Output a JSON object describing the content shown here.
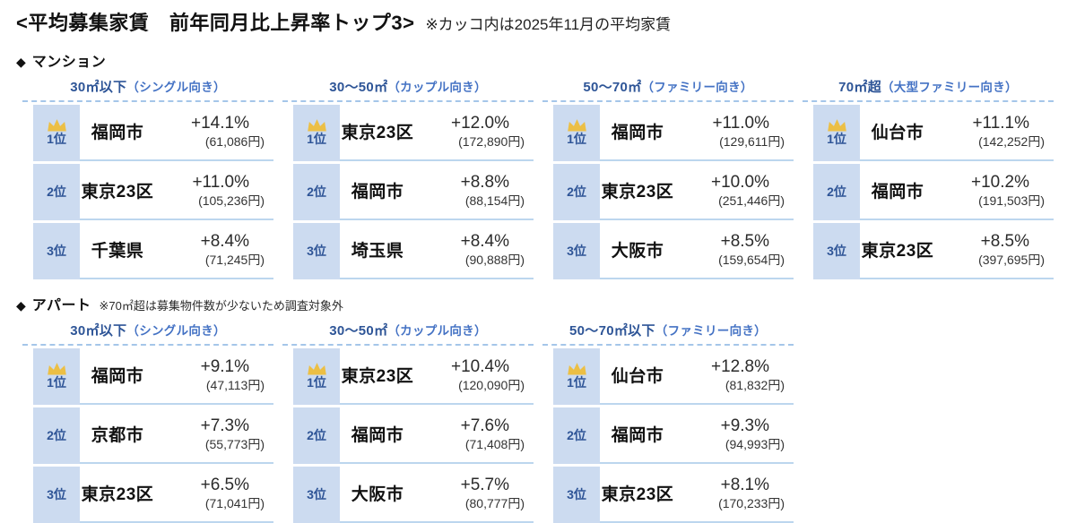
{
  "title": {
    "main": "<平均募集家賃　前年同月比上昇率トップ3>",
    "note": "※カッコ内は2025年11月の平均家賃"
  },
  "colors": {
    "header_blue": "#2e5597",
    "audience_blue": "#4472c4",
    "rank_cell_bg": "#ccdbf0",
    "rank_text": "#2f5597",
    "separator_line": "#bcd6ee",
    "dashed_line": "#a5c6e9",
    "crown_gold": "#ecbf45"
  },
  "icons": {
    "diamond": "◆",
    "crown": "crown-icon (gold, rank 1 only)"
  },
  "sections": [
    {
      "label": "マンション",
      "note": "",
      "columns": [
        {
          "size": "30㎡以下",
          "audience": "（シングル向き）",
          "rows": [
            {
              "rank": "1位",
              "city": "福岡市",
              "rate": "+14.1%",
              "rent": "(61,086円)"
            },
            {
              "rank": "2位",
              "city": "東京23区",
              "rate": "+11.0%",
              "rent": "(105,236円)"
            },
            {
              "rank": "3位",
              "city": "千葉県",
              "rate": "+8.4%",
              "rent": "(71,245円)"
            }
          ]
        },
        {
          "size": "30〜50㎡",
          "audience": "（カップル向き）",
          "rows": [
            {
              "rank": "1位",
              "city": "東京23区",
              "rate": "+12.0%",
              "rent": "(172,890円)"
            },
            {
              "rank": "2位",
              "city": "福岡市",
              "rate": "+8.8%",
              "rent": "(88,154円)"
            },
            {
              "rank": "3位",
              "city": "埼玉県",
              "rate": "+8.4%",
              "rent": "(90,888円)"
            }
          ]
        },
        {
          "size": "50〜70㎡",
          "audience": "（ファミリー向き）",
          "rows": [
            {
              "rank": "1位",
              "city": "福岡市",
              "rate": "+11.0%",
              "rent": "(129,611円)"
            },
            {
              "rank": "2位",
              "city": "東京23区",
              "rate": "+10.0%",
              "rent": "(251,446円)"
            },
            {
              "rank": "3位",
              "city": "大阪市",
              "rate": "+8.5%",
              "rent": "(159,654円)"
            }
          ]
        },
        {
          "size": "70㎡超",
          "audience": "（大型ファミリー向き）",
          "rows": [
            {
              "rank": "1位",
              "city": "仙台市",
              "rate": "+11.1%",
              "rent": "(142,252円)"
            },
            {
              "rank": "2位",
              "city": "福岡市",
              "rate": "+10.2%",
              "rent": "(191,503円)"
            },
            {
              "rank": "3位",
              "city": "東京23区",
              "rate": "+8.5%",
              "rent": "(397,695円)"
            }
          ]
        }
      ]
    },
    {
      "label": "アパート",
      "note": "※70㎡超は募集物件数が少ないため調査対象外",
      "columns": [
        {
          "size": "30㎡以下",
          "audience": "（シングル向き）",
          "rows": [
            {
              "rank": "1位",
              "city": "福岡市",
              "rate": "+9.1%",
              "rent": "(47,113円)"
            },
            {
              "rank": "2位",
              "city": "京都市",
              "rate": "+7.3%",
              "rent": "(55,773円)"
            },
            {
              "rank": "3位",
              "city": "東京23区",
              "rate": "+6.5%",
              "rent": "(71,041円)"
            }
          ]
        },
        {
          "size": "30〜50㎡",
          "audience": "（カップル向き）",
          "rows": [
            {
              "rank": "1位",
              "city": "東京23区",
              "rate": "+10.4%",
              "rent": "(120,090円)"
            },
            {
              "rank": "2位",
              "city": "福岡市",
              "rate": "+7.6%",
              "rent": "(71,408円)"
            },
            {
              "rank": "3位",
              "city": "大阪市",
              "rate": "+5.7%",
              "rent": "(80,777円)"
            }
          ]
        },
        {
          "size": "50〜70㎡以下",
          "audience": "（ファミリー向き）",
          "rows": [
            {
              "rank": "1位",
              "city": "仙台市",
              "rate": "+12.8%",
              "rent": "(81,832円)"
            },
            {
              "rank": "2位",
              "city": "福岡市",
              "rate": "+9.3%",
              "rent": "(94,993円)"
            },
            {
              "rank": "3位",
              "city": "東京23区",
              "rate": "+8.1%",
              "rent": "(170,233円)"
            }
          ]
        }
      ]
    }
  ],
  "chart_data": {
    "type": "table",
    "title": "平均募集家賃 前年同月比上昇率トップ3",
    "note": "カッコ内は2025年11月の平均家賃",
    "row_format": [
      "rank",
      "area",
      "yoy_increase_pct",
      "avg_rent_yen_2025_11"
    ],
    "tables": [
      {
        "group": "マンション",
        "categories": [
          {
            "category": "30㎡以下（シングル向き）",
            "rows": [
              [
                1,
                "福岡市",
                14.1,
                61086
              ],
              [
                2,
                "東京23区",
                11.0,
                105236
              ],
              [
                3,
                "千葉県",
                8.4,
                71245
              ]
            ]
          },
          {
            "category": "30〜50㎡（カップル向き）",
            "rows": [
              [
                1,
                "東京23区",
                12.0,
                172890
              ],
              [
                2,
                "福岡市",
                8.8,
                88154
              ],
              [
                3,
                "埼玉県",
                8.4,
                90888
              ]
            ]
          },
          {
            "category": "50〜70㎡（ファミリー向き）",
            "rows": [
              [
                1,
                "福岡市",
                11.0,
                129611
              ],
              [
                2,
                "東京23区",
                10.0,
                251446
              ],
              [
                3,
                "大阪市",
                8.5,
                159654
              ]
            ]
          },
          {
            "category": "70㎡超（大型ファミリー向き）",
            "rows": [
              [
                1,
                "仙台市",
                11.1,
                142252
              ],
              [
                2,
                "福岡市",
                10.2,
                191503
              ],
              [
                3,
                "東京23区",
                8.5,
                397695
              ]
            ]
          }
        ]
      },
      {
        "group": "アパート",
        "note": "70㎡超は募集物件数が少ないため調査対象外",
        "categories": [
          {
            "category": "30㎡以下（シングル向き）",
            "rows": [
              [
                1,
                "福岡市",
                9.1,
                47113
              ],
              [
                2,
                "京都市",
                7.3,
                55773
              ],
              [
                3,
                "東京23区",
                6.5,
                71041
              ]
            ]
          },
          {
            "category": "30〜50㎡（カップル向き）",
            "rows": [
              [
                1,
                "東京23区",
                10.4,
                120090
              ],
              [
                2,
                "福岡市",
                7.6,
                71408
              ],
              [
                3,
                "大阪市",
                5.7,
                80777
              ]
            ]
          },
          {
            "category": "50〜70㎡以下（ファミリー向き）",
            "rows": [
              [
                1,
                "仙台市",
                12.8,
                81832
              ],
              [
                2,
                "福岡市",
                9.3,
                94993
              ],
              [
                3,
                "東京23区",
                8.1,
                170233
              ]
            ]
          }
        ]
      }
    ]
  }
}
